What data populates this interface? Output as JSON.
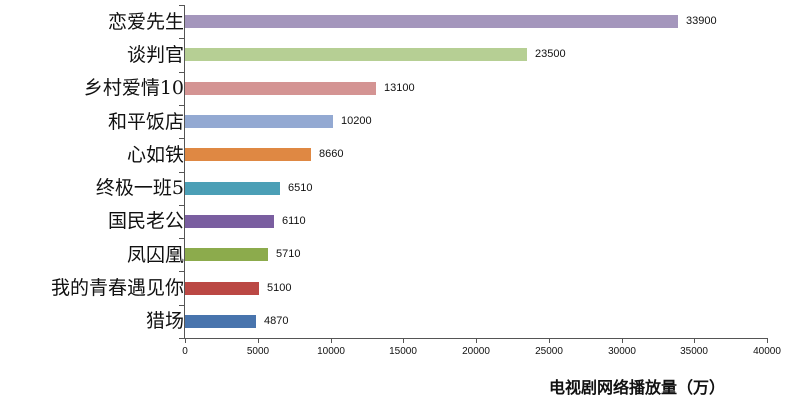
{
  "chart_data": {
    "type": "bar",
    "orientation": "horizontal",
    "title": "",
    "xlabel": "电视剧网络播放量（万）",
    "ylabel": "",
    "xlim": [
      0,
      40000
    ],
    "x_ticks": [
      0,
      5000,
      10000,
      15000,
      20000,
      25000,
      30000,
      35000,
      40000
    ],
    "grid": false,
    "legend": null,
    "categories": [
      "恋爱先生",
      "谈判官",
      "乡村爱情10",
      "和平饭店",
      "心如铁",
      "终极一班5",
      "国民老公",
      "凤囚凰",
      "我的青春遇见你",
      "猎场"
    ],
    "values": [
      33900,
      23500,
      13100,
      10200,
      8660,
      6510,
      6110,
      5710,
      5100,
      4870
    ],
    "value_labels": [
      "33900",
      "23500",
      "13100",
      "10200",
      "8660",
      "6510",
      "6110",
      "5710",
      "5100",
      "4870"
    ],
    "colors": [
      "#a496bc",
      "#b6cf94",
      "#d49493",
      "#93a9d2",
      "#df8843",
      "#4b9fb6",
      "#7a5ea0",
      "#8cab4c",
      "#bb4844",
      "#4874ad"
    ]
  },
  "axis": {
    "x_tick_labels": [
      "0",
      "5000",
      "10000",
      "15000",
      "20000",
      "25000",
      "30000",
      "35000",
      "40000"
    ],
    "x_title": "电视剧网络播放量（万）"
  }
}
